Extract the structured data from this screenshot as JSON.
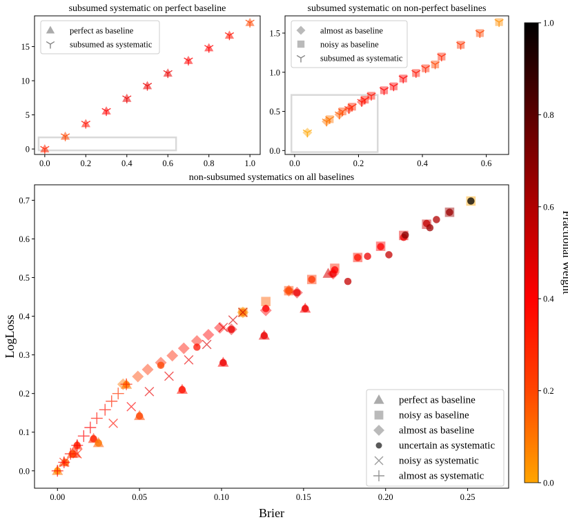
{
  "chart_data": [
    {
      "type": "scatter",
      "title": "subsumed systematic on perfect baseline",
      "xlabel": "",
      "ylabel": "",
      "xlim": [
        -0.05,
        1.05
      ],
      "ylim": [
        -0.8,
        19.5
      ],
      "xticks": [
        0.0,
        0.2,
        0.4,
        0.6,
        0.8,
        1.0
      ],
      "xtick_labels": [
        "0.0",
        "0.2",
        "0.4",
        "0.6",
        "0.8",
        "1.0"
      ],
      "yticks": [
        0,
        5,
        10,
        15
      ],
      "ytick_labels": [
        "0",
        "5",
        "10",
        "15"
      ],
      "legend": [
        {
          "marker": "triangle",
          "label": "perfect as baseline"
        },
        {
          "marker": "tri-down",
          "label": "subsumed as systematic"
        }
      ],
      "highlight_box": {
        "x0": -0.03,
        "x1": 0.64,
        "y0": -0.2,
        "y1": 1.7
      },
      "series": [
        {
          "name": "perfect as baseline",
          "marker": "triangle",
          "points": [
            [
              0,
              0,
              0.3
            ],
            [
              0.1,
              1.85,
              0.2
            ],
            [
              0.2,
              3.7,
              0.35
            ],
            [
              0.3,
              5.55,
              0.4
            ],
            [
              0.4,
              7.4,
              0.45
            ],
            [
              0.5,
              9.25,
              0.45
            ],
            [
              0.6,
              11.1,
              0.45
            ],
            [
              0.7,
              12.95,
              0.4
            ],
            [
              0.8,
              14.8,
              0.4
            ],
            [
              0.9,
              16.65,
              0.35
            ],
            [
              1.0,
              18.5,
              0.2
            ]
          ]
        },
        {
          "name": "subsumed as systematic",
          "marker": "tri-down",
          "points": [
            [
              0,
              0,
              0.3
            ],
            [
              0.1,
              1.85,
              0.2
            ],
            [
              0.2,
              3.7,
              0.35
            ],
            [
              0.3,
              5.55,
              0.4
            ],
            [
              0.4,
              7.4,
              0.45
            ],
            [
              0.5,
              9.25,
              0.45
            ],
            [
              0.6,
              11.1,
              0.45
            ],
            [
              0.7,
              12.95,
              0.4
            ],
            [
              0.8,
              14.8,
              0.4
            ],
            [
              0.9,
              16.65,
              0.35
            ],
            [
              1.0,
              18.5,
              0.2
            ]
          ]
        }
      ]
    },
    {
      "type": "scatter",
      "title": "subsumed systematic on non-perfect baselines",
      "xlabel": "",
      "ylabel": "",
      "xlim": [
        -0.03,
        0.67
      ],
      "ylim": [
        -0.05,
        1.72
      ],
      "xticks": [
        0.0,
        0.2,
        0.4,
        0.6
      ],
      "xtick_labels": [
        "0.0",
        "0.2",
        "0.4",
        "0.6"
      ],
      "yticks": [
        0.0,
        0.5,
        1.0,
        1.5
      ],
      "ytick_labels": [
        "0.0",
        "0.5",
        "1.0",
        "1.5"
      ],
      "legend": [
        {
          "marker": "diamond",
          "label": "almost as baseline"
        },
        {
          "marker": "square",
          "label": "noisy as baseline"
        },
        {
          "marker": "tri-down",
          "label": "subsumed as systematic"
        }
      ],
      "highlight_box": {
        "x0": -0.01,
        "x1": 0.26,
        "y0": -0.02,
        "y1": 0.71
      },
      "series": [
        {
          "name": "almost as baseline",
          "marker": "diamond",
          "points": [
            [
              0.04,
              0.23,
              0.0
            ],
            [
              0.1,
              0.37,
              0.1
            ],
            [
              0.14,
              0.46,
              0.15
            ],
            [
              0.17,
              0.53,
              0.3
            ],
            [
              0.21,
              0.62,
              0.35
            ]
          ]
        },
        {
          "name": "noisy as baseline",
          "marker": "square",
          "points": [
            [
              0.11,
              0.4,
              0.1
            ],
            [
              0.15,
              0.5,
              0.2
            ],
            [
              0.18,
              0.56,
              0.3
            ],
            [
              0.22,
              0.65,
              0.35
            ],
            [
              0.24,
              0.7,
              0.35
            ],
            [
              0.28,
              0.77,
              0.4
            ],
            [
              0.31,
              0.82,
              0.4
            ],
            [
              0.34,
              0.92,
              0.4
            ],
            [
              0.38,
              0.99,
              0.35
            ],
            [
              0.41,
              1.05,
              0.3
            ],
            [
              0.44,
              1.1,
              0.2
            ],
            [
              0.46,
              1.2,
              0.3
            ],
            [
              0.52,
              1.35,
              0.25
            ],
            [
              0.58,
              1.5,
              0.2
            ],
            [
              0.64,
              1.64,
              0.05
            ]
          ]
        },
        {
          "name": "subsumed as systematic",
          "marker": "tri-down",
          "points": [
            [
              0.04,
              0.23,
              0.0
            ],
            [
              0.1,
              0.37,
              0.1
            ],
            [
              0.11,
              0.4,
              0.1
            ],
            [
              0.14,
              0.46,
              0.15
            ],
            [
              0.15,
              0.5,
              0.2
            ],
            [
              0.17,
              0.53,
              0.3
            ],
            [
              0.18,
              0.56,
              0.3
            ],
            [
              0.21,
              0.62,
              0.35
            ],
            [
              0.22,
              0.65,
              0.35
            ],
            [
              0.24,
              0.7,
              0.35
            ],
            [
              0.28,
              0.77,
              0.4
            ],
            [
              0.31,
              0.82,
              0.4
            ],
            [
              0.34,
              0.92,
              0.4
            ],
            [
              0.38,
              0.99,
              0.35
            ],
            [
              0.41,
              1.05,
              0.3
            ],
            [
              0.44,
              1.1,
              0.2
            ],
            [
              0.46,
              1.2,
              0.3
            ],
            [
              0.52,
              1.35,
              0.25
            ],
            [
              0.58,
              1.5,
              0.2
            ],
            [
              0.64,
              1.64,
              0.05
            ]
          ]
        }
      ]
    },
    {
      "type": "scatter",
      "title": "non-subsumed systematics on all baselines",
      "xlabel": "Brier",
      "ylabel": "LogLoss",
      "xlim": [
        -0.014,
        0.275
      ],
      "ylim": [
        -0.045,
        0.74
      ],
      "xticks": [
        0.0,
        0.05,
        0.1,
        0.15,
        0.2,
        0.25
      ],
      "xtick_labels": [
        "0.00",
        "0.05",
        "0.10",
        "0.15",
        "0.20",
        "0.25"
      ],
      "yticks": [
        0.0,
        0.1,
        0.2,
        0.3,
        0.4,
        0.5,
        0.6,
        0.7
      ],
      "ytick_labels": [
        "0.0",
        "0.1",
        "0.2",
        "0.3",
        "0.4",
        "0.5",
        "0.6",
        "0.7"
      ],
      "legend": [
        {
          "marker": "triangle",
          "label": "perfect as baseline"
        },
        {
          "marker": "square",
          "label": "noisy as baseline"
        },
        {
          "marker": "diamond",
          "label": "almost as baseline"
        },
        {
          "marker": "circle",
          "label": "uncertain as systematic"
        },
        {
          "marker": "x",
          "label": "noisy as systematic"
        },
        {
          "marker": "plus",
          "label": "almost as systematic"
        }
      ],
      "series": [
        {
          "name": "perfect as baseline",
          "marker": "triangle",
          "points": [
            [
              0,
              0,
              0.1
            ],
            [
              0.004,
              0.022,
              0.2
            ],
            [
              0.009,
              0.044,
              0.25
            ],
            [
              0.011,
              0.045,
              0.3
            ],
            [
              0.012,
              0.066,
              0.3
            ],
            [
              0.022,
              0.083,
              0.3
            ],
            [
              0.025,
              0.072,
              0.15
            ],
            [
              0.042,
              0.223,
              0.1
            ],
            [
              0.05,
              0.142,
              0.2
            ],
            [
              0.076,
              0.21,
              0.35
            ],
            [
              0.101,
              0.28,
              0.4
            ],
            [
              0.126,
              0.35,
              0.45
            ],
            [
              0.151,
              0.42,
              0.4
            ],
            [
              0.165,
              0.51,
              0.5
            ]
          ]
        },
        {
          "name": "noisy as baseline",
          "marker": "square",
          "points": [
            [
              0.113,
              0.41,
              0.05
            ],
            [
              0.127,
              0.438,
              0.15
            ],
            [
              0.141,
              0.466,
              0.2
            ],
            [
              0.155,
              0.495,
              0.25
            ],
            [
              0.169,
              0.524,
              0.3
            ],
            [
              0.183,
              0.552,
              0.35
            ],
            [
              0.197,
              0.581,
              0.4
            ],
            [
              0.211,
              0.609,
              0.45
            ],
            [
              0.225,
              0.638,
              0.55
            ],
            [
              0.239,
              0.669,
              0.65
            ],
            [
              0.252,
              0.698,
              0.0
            ]
          ]
        },
        {
          "name": "almost as baseline",
          "marker": "diamond",
          "points": [
            [
              0.04,
              0.224,
              0.1
            ],
            [
              0.049,
              0.244,
              0.2
            ],
            [
              0.055,
              0.262,
              0.25
            ],
            [
              0.063,
              0.28,
              0.3
            ],
            [
              0.07,
              0.298,
              0.3
            ],
            [
              0.077,
              0.317,
              0.35
            ],
            [
              0.085,
              0.336,
              0.35
            ],
            [
              0.092,
              0.352,
              0.4
            ],
            [
              0.099,
              0.37,
              0.4
            ],
            [
              0.106,
              0.366,
              0.45
            ],
            [
              0.113,
              0.41,
              0.05
            ],
            [
              0.127,
              0.415,
              0.4
            ],
            [
              0.141,
              0.466,
              0.2
            ],
            [
              0.146,
              0.461,
              0.45
            ],
            [
              0.168,
              0.51,
              0.4
            ]
          ]
        },
        {
          "name": "uncertain as systematic",
          "marker": "circle",
          "points": [
            [
              0.0,
              0.0,
              0.05
            ],
            [
              0.005,
              0.022,
              0.15
            ],
            [
              0.009,
              0.044,
              0.2
            ],
            [
              0.012,
              0.066,
              0.3
            ],
            [
              0.022,
              0.083,
              0.3
            ],
            [
              0.025,
              0.072,
              0.1
            ],
            [
              0.042,
              0.223,
              0.1
            ],
            [
              0.05,
              0.142,
              0.2
            ],
            [
              0.063,
              0.273,
              0.2
            ],
            [
              0.076,
              0.21,
              0.35
            ],
            [
              0.085,
              0.32,
              0.35
            ],
            [
              0.101,
              0.28,
              0.45
            ],
            [
              0.106,
              0.366,
              0.45
            ],
            [
              0.113,
              0.41,
              0.1
            ],
            [
              0.126,
              0.35,
              0.45
            ],
            [
              0.127,
              0.42,
              0.4
            ],
            [
              0.141,
              0.466,
              0.2
            ],
            [
              0.146,
              0.461,
              0.45
            ],
            [
              0.151,
              0.42,
              0.45
            ],
            [
              0.155,
              0.495,
              0.25
            ],
            [
              0.168,
              0.51,
              0.45
            ],
            [
              0.169,
              0.52,
              0.4
            ],
            [
              0.177,
              0.49,
              0.55
            ],
            [
              0.183,
              0.552,
              0.35
            ],
            [
              0.189,
              0.555,
              0.45
            ],
            [
              0.197,
              0.58,
              0.4
            ],
            [
              0.202,
              0.559,
              0.55
            ],
            [
              0.211,
              0.604,
              0.45
            ],
            [
              0.212,
              0.61,
              0.7
            ],
            [
              0.225,
              0.64,
              0.55
            ],
            [
              0.227,
              0.629,
              0.65
            ],
            [
              0.231,
              0.65,
              0.6
            ],
            [
              0.239,
              0.669,
              0.65
            ],
            [
              0.252,
              0.698,
              1.0
            ]
          ]
        },
        {
          "name": "noisy as systematic",
          "marker": "x",
          "points": [
            [
              0.004,
              0.022,
              0.3
            ],
            [
              0.012,
              0.044,
              0.3
            ],
            [
              0.034,
              0.123,
              0.35
            ],
            [
              0.045,
              0.166,
              0.4
            ],
            [
              0.056,
              0.205,
              0.45
            ],
            [
              0.068,
              0.245,
              0.45
            ],
            [
              0.08,
              0.287,
              0.45
            ],
            [
              0.091,
              0.327,
              0.5
            ],
            [
              0.101,
              0.371,
              0.45
            ],
            [
              0.107,
              0.39,
              0.5
            ],
            [
              0.113,
              0.41,
              0.55
            ]
          ]
        },
        {
          "name": "almost as systematic",
          "marker": "plus",
          "points": [
            [
              0.0,
              0.0,
              0.4
            ],
            [
              0.004,
              0.022,
              0.4
            ],
            [
              0.008,
              0.044,
              0.35
            ],
            [
              0.012,
              0.066,
              0.4
            ],
            [
              0.016,
              0.09,
              0.4
            ],
            [
              0.02,
              0.112,
              0.4
            ],
            [
              0.024,
              0.136,
              0.35
            ],
            [
              0.029,
              0.158,
              0.35
            ],
            [
              0.033,
              0.18,
              0.3
            ],
            [
              0.037,
              0.2,
              0.25
            ],
            [
              0.042,
              0.224,
              0.3
            ]
          ]
        }
      ]
    }
  ],
  "colorbar": {
    "label": "Fractional Weight",
    "ticks": [
      0.0,
      0.2,
      0.4,
      0.6,
      0.8,
      1.0
    ],
    "tick_labels": [
      "0.0",
      "0.2",
      "0.4",
      "0.6",
      "0.8",
      "1.0"
    ],
    "colormap": [
      "#ffa500",
      "#ff4500",
      "#ff0000",
      "#b00000",
      "#5a0000",
      "#000000"
    ]
  }
}
